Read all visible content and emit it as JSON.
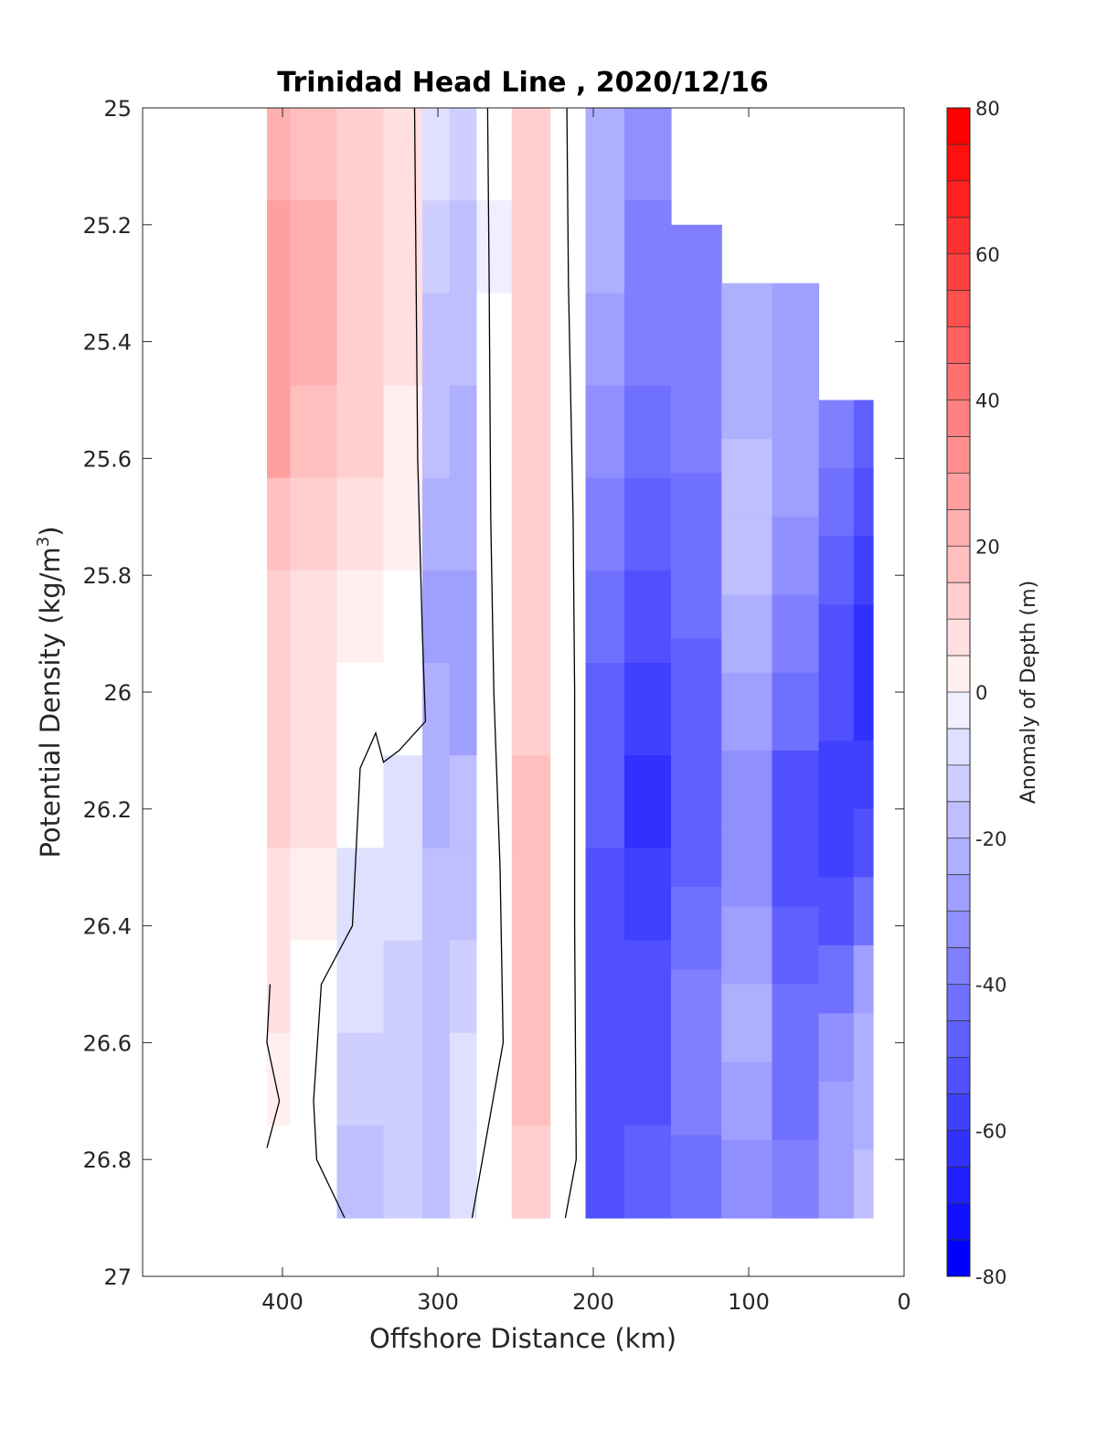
{
  "chart_data": {
    "type": "heatmap",
    "title": "Trinidad Head Line , 2020/12/16",
    "xlabel": "Offshore Distance (km)",
    "ylabel_main": "Potential Density (kg/m",
    "ylabel_sup": "3",
    "ylabel_close": ")",
    "xlim": [
      490,
      0
    ],
    "ylim": [
      25,
      27
    ],
    "y_reversed": true,
    "xticks": [
      400,
      300,
      200,
      100,
      0
    ],
    "yticks": [
      25,
      25.2,
      25.4,
      25.6,
      25.8,
      26,
      26.2,
      26.4,
      26.6,
      26.8,
      27
    ],
    "ytick_labels": [
      "25",
      "25.2",
      "25.4",
      "25.6",
      "25.8",
      "26",
      "26.2",
      "26.4",
      "26.6",
      "26.8",
      "27"
    ],
    "colorbar": {
      "label": "Anomaly of Depth (m)",
      "range": [
        -80,
        80
      ],
      "step": 5,
      "ticks": [
        80,
        60,
        40,
        20,
        0,
        -20,
        -40,
        -60,
        -80
      ],
      "tick_labels": [
        "80",
        "60",
        "40",
        "20",
        "0",
        "-20",
        "-40",
        "-60",
        "-80"
      ],
      "colormap": "blue-white-red"
    },
    "columns": [
      {
        "x": 410,
        "ytop": 25.0,
        "ybot": 26.9,
        "v": [
          22,
          28,
          30,
          27,
          20,
          15,
          13,
          11,
          9,
          6,
          4,
          2
        ]
      },
      {
        "x": 380,
        "ytop": 25.0,
        "ybot": 26.9,
        "v": [
          18,
          22,
          24,
          20,
          14,
          10,
          8,
          6,
          4,
          2,
          0,
          0
        ]
      },
      {
        "x": 350,
        "ytop": 25.0,
        "ybot": 26.9,
        "v": [
          13,
          15,
          15,
          12,
          8,
          4,
          2,
          -2,
          -6,
          -10,
          -15,
          -18
        ]
      },
      {
        "x": 320,
        "ytop": 25.0,
        "ybot": 26.9,
        "v": [
          8,
          8,
          7,
          5,
          3,
          1,
          0,
          -6,
          -10,
          -12,
          -14,
          -15
        ]
      },
      {
        "x": 300,
        "ytop": 25.0,
        "ybot": 26.9,
        "v": [
          -10,
          -14,
          -17,
          -20,
          -23,
          -26,
          -25,
          -22,
          -19,
          -17,
          -16,
          -18
        ]
      },
      {
        "x": 285,
        "ytop": 25.0,
        "ybot": 26.9,
        "v": [
          -14,
          -18,
          -20,
          -22,
          -24,
          -27,
          -26,
          -20,
          -16,
          -12,
          -8,
          -10
        ]
      },
      {
        "x": 265,
        "ytop": 25.0,
        "ybot": 26.9,
        "v": [
          -2,
          -3,
          -2,
          -1,
          0,
          0,
          0,
          0,
          0,
          0,
          0,
          0
        ]
      },
      {
        "x": 240,
        "ytop": 25.0,
        "ybot": 26.9,
        "v": [
          12,
          14,
          15,
          15,
          14,
          13,
          14,
          16,
          19,
          20,
          19,
          15
        ]
      },
      {
        "x": 215,
        "ytop": 25.0,
        "ybot": 26.9,
        "v": [
          2,
          2,
          1,
          1,
          0,
          0,
          0,
          0,
          0,
          0,
          0,
          0
        ]
      },
      {
        "x": 195,
        "ytop": 25.0,
        "ybot": 26.9,
        "v": [
          -22,
          -25,
          -30,
          -35,
          -40,
          -45,
          -48,
          -50,
          -52,
          -54,
          -55,
          -55
        ]
      },
      {
        "x": 165,
        "ytop": 25.0,
        "ybot": 26.9,
        "v": [
          -35,
          -38,
          -40,
          -42,
          -48,
          -55,
          -60,
          -65,
          -60,
          -55,
          -52,
          -50
        ]
      },
      {
        "x": 135,
        "ytop": 25.2,
        "ybot": 26.9,
        "v": [
          -38,
          -40,
          -40,
          -42,
          -45,
          -48,
          -50,
          -48,
          -45,
          -40,
          -40,
          -42
        ]
      },
      {
        "x": 100,
        "ytop": 25.3,
        "ybot": 26.9,
        "v": [
          -25,
          -22,
          -18,
          -20,
          -25,
          -30,
          -35,
          -35,
          -30,
          -25,
          -28,
          -32
        ]
      },
      {
        "x": 70,
        "ytop": 25.3,
        "ybot": 26.9,
        "v": [
          -30,
          -30,
          -30,
          -35,
          -40,
          -45,
          -52,
          -55,
          -50,
          -45,
          -42,
          -40
        ]
      },
      {
        "x": 40,
        "ytop": 25.5,
        "ybot": 26.9,
        "v": [
          -40,
          -45,
          -50,
          -55,
          -55,
          -58,
          -60,
          -55,
          -45,
          -35,
          -30,
          -30
        ]
      },
      {
        "x": 25,
        "ytop": 25.5,
        "ybot": 26.9,
        "v": [
          -50,
          -55,
          -60,
          -62,
          -62,
          -60,
          -55,
          -45,
          -30,
          -25,
          -22,
          -20
        ]
      }
    ],
    "zero_contours": [
      [
        [
          315,
          25.0
        ],
        [
          314,
          25.3
        ],
        [
          313,
          25.6
        ],
        [
          310,
          25.9
        ],
        [
          308,
          26.05
        ],
        [
          325,
          26.1
        ],
        [
          335,
          26.12
        ],
        [
          340,
          26.07
        ],
        [
          350,
          26.13
        ],
        [
          355,
          26.4
        ],
        [
          375,
          26.5
        ],
        [
          380,
          26.7
        ],
        [
          378,
          26.8
        ],
        [
          360,
          26.9
        ]
      ],
      [
        [
          268,
          25.0
        ],
        [
          267,
          25.3
        ],
        [
          266,
          25.7
        ],
        [
          264,
          26.0
        ],
        [
          260,
          26.3
        ],
        [
          258,
          26.6
        ],
        [
          278,
          26.9
        ]
      ],
      [
        [
          217,
          25.0
        ],
        [
          216,
          25.3
        ],
        [
          213,
          25.7
        ],
        [
          212,
          26.0
        ],
        [
          212,
          26.4
        ],
        [
          211,
          26.8
        ],
        [
          218,
          26.9
        ]
      ],
      [
        [
          408,
          26.5
        ],
        [
          410,
          26.6
        ],
        [
          402,
          26.7
        ],
        [
          410,
          26.78
        ]
      ]
    ]
  }
}
